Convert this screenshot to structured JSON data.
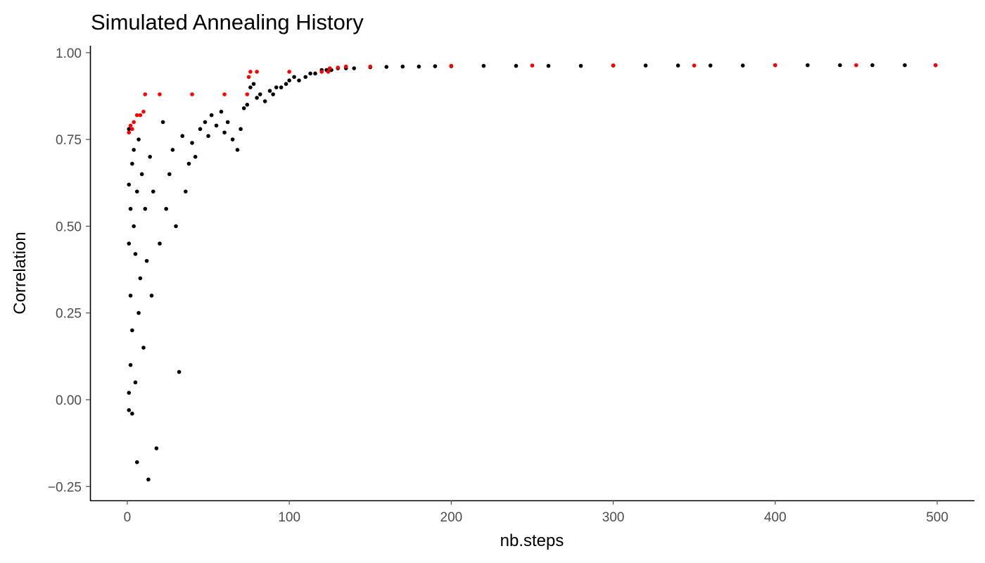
{
  "chart_data": {
    "type": "scatter",
    "title": "Simulated Annealing History",
    "xlabel": "nb.steps",
    "ylabel": "Correlation",
    "xlim": [
      -23,
      523
    ],
    "ylim": [
      -0.29,
      1.02
    ],
    "xticks": [
      0,
      100,
      200,
      300,
      400,
      500
    ],
    "xtick_labels": [
      "0",
      "100",
      "200",
      "300",
      "400",
      "500"
    ],
    "yticks": [
      -0.25,
      0,
      0.25,
      0.5,
      0.75,
      1
    ],
    "ytick_labels": [
      "−0.25",
      "0.00",
      "0.25",
      "0.50",
      "0.75",
      "1.00"
    ],
    "grid": false,
    "legend": "none",
    "colors": {
      "current": "#000000",
      "best": "#ff0000",
      "axis": "#000000",
      "ticks": "#4d4d4d"
    },
    "series": [
      {
        "role": "current",
        "color": "#000000",
        "x": [
          1,
          1,
          1,
          1,
          1,
          2,
          2,
          2,
          3,
          3,
          3,
          4,
          4,
          5,
          5,
          6,
          6,
          7,
          7,
          8,
          9,
          10,
          11,
          12,
          13,
          14,
          15,
          16,
          18,
          20,
          22,
          24,
          26,
          28,
          30,
          32,
          34,
          36,
          38,
          40,
          42,
          45,
          48,
          50,
          52,
          55,
          58,
          60,
          62,
          65,
          68,
          70,
          72,
          74,
          76,
          78,
          80,
          82,
          85,
          88,
          90,
          92,
          95,
          98,
          100,
          103,
          106,
          110,
          113,
          116,
          120,
          123,
          126,
          130,
          135,
          140,
          150,
          160,
          170,
          180,
          190,
          200,
          220,
          240,
          260,
          280,
          300,
          320,
          340,
          360,
          380,
          400,
          420,
          440,
          460,
          480,
          499
        ],
        "y": [
          0.02,
          -0.03,
          0.45,
          0.62,
          0.78,
          0.3,
          0.55,
          0.1,
          -0.04,
          0.68,
          0.2,
          0.5,
          0.72,
          0.05,
          0.42,
          -0.18,
          0.6,
          0.25,
          0.75,
          0.35,
          0.65,
          0.15,
          0.55,
          0.4,
          -0.23,
          0.7,
          0.3,
          0.6,
          -0.14,
          0.45,
          0.8,
          0.55,
          0.65,
          0.72,
          0.5,
          0.08,
          0.76,
          0.6,
          0.68,
          0.74,
          0.7,
          0.78,
          0.8,
          0.76,
          0.82,
          0.79,
          0.83,
          0.77,
          0.8,
          0.75,
          0.72,
          0.78,
          0.84,
          0.85,
          0.9,
          0.91,
          0.87,
          0.88,
          0.86,
          0.89,
          0.88,
          0.9,
          0.9,
          0.91,
          0.92,
          0.93,
          0.92,
          0.93,
          0.94,
          0.94,
          0.95,
          0.95,
          0.95,
          0.955,
          0.955,
          0.955,
          0.958,
          0.959,
          0.96,
          0.96,
          0.961,
          0.961,
          0.962,
          0.962,
          0.962,
          0.962,
          0.963,
          0.963,
          0.963,
          0.963,
          0.963,
          0.964,
          0.964,
          0.964,
          0.964,
          0.964,
          0.964
        ]
      },
      {
        "role": "best",
        "color": "#ff0000",
        "x": [
          1,
          2,
          3,
          4,
          6,
          8,
          10,
          11,
          20,
          40,
          60,
          74,
          75,
          76,
          80,
          100,
          120,
          124,
          125,
          130,
          135,
          150,
          200,
          250,
          300,
          350,
          400,
          450,
          499
        ],
        "y": [
          0.77,
          0.79,
          0.78,
          0.8,
          0.82,
          0.82,
          0.83,
          0.88,
          0.88,
          0.88,
          0.88,
          0.88,
          0.93,
          0.945,
          0.945,
          0.945,
          0.945,
          0.945,
          0.955,
          0.957,
          0.96,
          0.96,
          0.962,
          0.963,
          0.963,
          0.963,
          0.964,
          0.964,
          0.964
        ]
      }
    ]
  }
}
